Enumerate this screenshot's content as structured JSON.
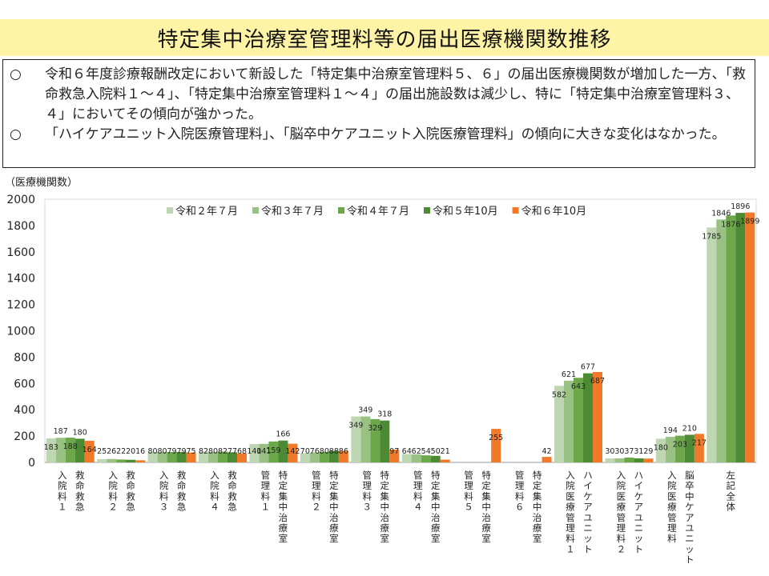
{
  "header": {
    "title": "特定集中治療室管理料等の届出医療機関数推移"
  },
  "summary": {
    "items": [
      {
        "mark": "○",
        "text": "令和６年度診療報酬改定において新設した「特定集中治療室管理料５、６」の届出医療機関数が増加した一方、「救命救急入院料１～４」、「特定集中治療室管理料１～４」の届出施設数は減少し、特に「特定集中治療室管理料３、４」においてその傾向が強かった。"
      },
      {
        "mark": "○",
        "text": "「ハイケアユニット入院医療管理料」、「脳卒中ケアユニット入院医療管理料」の傾向に大きな変化はなかった。"
      }
    ]
  },
  "chart_data": {
    "type": "bar",
    "ylabel": "（医療機関数）",
    "ylim": [
      0,
      2000
    ],
    "yticks": [
      0,
      200,
      400,
      600,
      800,
      1000,
      1200,
      1400,
      1600,
      1800,
      2000
    ],
    "grid": false,
    "legend_position": "top",
    "categories": [
      "救命救急入院料1",
      "救命救急入院料2",
      "救命救急入院料3",
      "救命救急入院料4",
      "特定集中治療室管理料1",
      "特定集中治療室管理料2",
      "特定集中治療室管理料3",
      "特定集中治療室管理料4",
      "特定集中治療室管理料5",
      "特定集中治療室管理料6",
      "ハイケアユニット入院医療管理料1",
      "ハイケアユニット入院医療管理料2",
      "脳卒中ケアユニット入院医療管理料",
      "左記全体"
    ],
    "category_label_columns": [
      [
        "入院料１",
        "救命救急"
      ],
      [
        "入院料２",
        "救命救急"
      ],
      [
        "入院料３",
        "救命救急"
      ],
      [
        "入院料４",
        "救命救急"
      ],
      [
        "管理料１",
        "特定集中治療室"
      ],
      [
        "管理料２",
        "特定集中治療室"
      ],
      [
        "管理料３",
        "特定集中治療室"
      ],
      [
        "管理料４",
        "特定集中治療室"
      ],
      [
        "管理料５",
        "特定集中治療室"
      ],
      [
        "管理料６",
        "特定集中治療室"
      ],
      [
        "入院医療管理料１",
        "ハイケアユニット"
      ],
      [
        "入院医療管理料２",
        "ハイケアユニット"
      ],
      [
        "入院医療管理料",
        "脳卒中ケアユニット"
      ],
      [
        "左記全体"
      ]
    ],
    "series": [
      {
        "name": "令和２年７月",
        "color": "#bfd6b3",
        "values": [
          183,
          25,
          80,
          82,
          140,
          70,
          349,
          64,
          null,
          null,
          582,
          30,
          180,
          1785
        ]
      },
      {
        "name": "令和３年７月",
        "color": "#98c183",
        "values": [
          187,
          26,
          80,
          80,
          141,
          76,
          349,
          62,
          null,
          null,
          621,
          30,
          194,
          1846
        ]
      },
      {
        "name": "令和４年７月",
        "color": "#6ca84a",
        "values": [
          188,
          22,
          79,
          82,
          159,
          80,
          329,
          54,
          null,
          null,
          643,
          37,
          203,
          1876
        ]
      },
      {
        "name": "令和５年10月",
        "color": "#4c8a33",
        "values": [
          180,
          20,
          79,
          77,
          166,
          88,
          318,
          50,
          null,
          null,
          677,
          31,
          210,
          1896
        ]
      },
      {
        "name": "令和６年10月",
        "color": "#f07a2a",
        "values": [
          164,
          16,
          75,
          68,
          142,
          86,
          97,
          21,
          255,
          42,
          687,
          29,
          217,
          1899
        ]
      }
    ]
  }
}
